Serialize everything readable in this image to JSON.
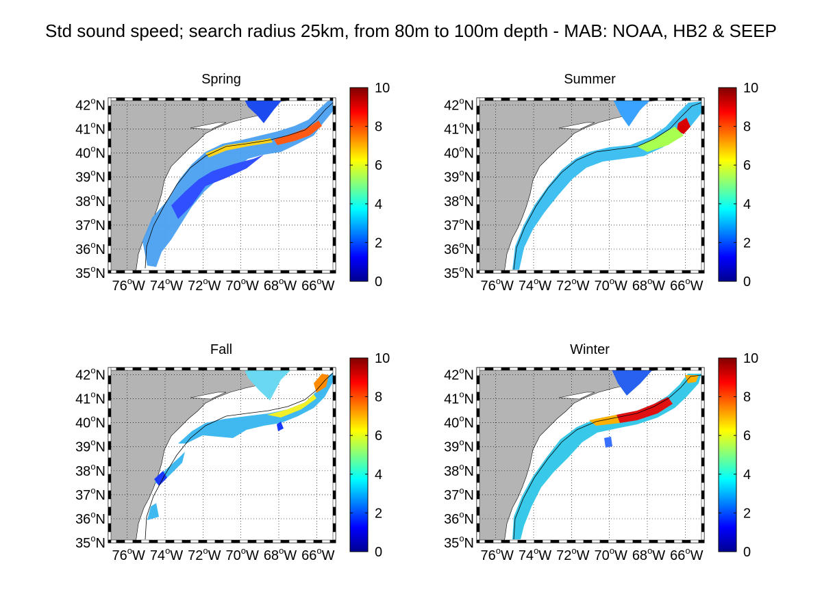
{
  "figure": {
    "title": "Std sound speed; search radius 25km, from 80m to 100m depth - MAB: NOAA, HB2 & SEEP"
  },
  "panels": [
    {
      "title": "Spring"
    },
    {
      "title": "Summer"
    },
    {
      "title": "Fall"
    },
    {
      "title": "Winter"
    }
  ],
  "axes": {
    "lat_ticks": [
      "42",
      "41",
      "40",
      "39",
      "38",
      "37",
      "36",
      "35"
    ],
    "lon_ticks": [
      "76",
      "74",
      "72",
      "70",
      "68",
      "66"
    ],
    "lat_suffix": "N",
    "lon_suffix": "W",
    "degree_symbol": "o",
    "lon_range": [
      -77,
      -65
    ],
    "lat_range": [
      35,
      42.3
    ],
    "grid": true
  },
  "colorbar": {
    "ticks": [
      "10",
      "8",
      "6",
      "4",
      "2",
      "0"
    ],
    "range": [
      0,
      10
    ],
    "colormap": "jet"
  },
  "colors": {
    "land": "#b4b4b4",
    "ocean": "#ffffff",
    "cb_stops": [
      "#00008f",
      "#0000ff",
      "#0080ff",
      "#00ffff",
      "#80ff80",
      "#ffff00",
      "#ff8000",
      "#ff0000",
      "#800000"
    ]
  }
}
